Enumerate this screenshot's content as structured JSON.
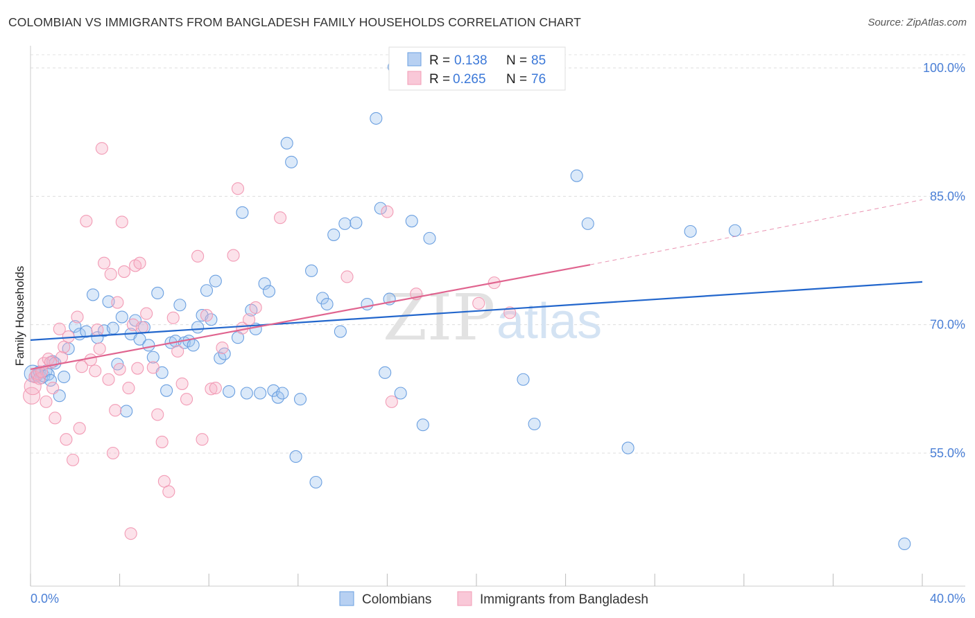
{
  "title": "COLOMBIAN VS IMMIGRANTS FROM BANGLADESH FAMILY HOUSEHOLDS CORRELATION CHART",
  "source": "Source: ZipAtlas.com",
  "watermark": {
    "part1": "ZIP",
    "part2": "atlas"
  },
  "chart_data": {
    "type": "scatter",
    "title": "COLOMBIAN VS IMMIGRANTS FROM BANGLADESH FAMILY HOUSEHOLDS CORRELATION CHART",
    "xlabel": "",
    "ylabel": "Family Households",
    "xlim": [
      0,
      40
    ],
    "ylim": [
      40,
      102
    ],
    "x_tick_labels": [
      "0.0%",
      "40.0%"
    ],
    "y_ticks": [
      55,
      70,
      85,
      100
    ],
    "y_tick_labels": [
      "55.0%",
      "70.0%",
      "85.0%",
      "100.0%"
    ],
    "grid": true,
    "legend_position": "top-center",
    "series": [
      {
        "name": "Colombians",
        "color": "#6a9fe0",
        "line_color": "#2266cc",
        "R": "0.138",
        "N": "85",
        "trend": {
          "x": [
            0,
            40
          ],
          "y": [
            68.2,
            75.0
          ]
        },
        "points": [
          [
            0.1,
            64.3
          ],
          [
            0.2,
            63.9
          ],
          [
            0.3,
            64.1
          ],
          [
            0.4,
            64.5
          ],
          [
            0.5,
            63.8
          ],
          [
            0.6,
            64.0
          ],
          [
            0.7,
            64.6
          ],
          [
            0.8,
            64.2
          ],
          [
            0.9,
            63.5
          ],
          [
            1.0,
            65.7
          ],
          [
            1.1,
            65.5
          ],
          [
            1.3,
            61.7
          ],
          [
            1.5,
            63.9
          ],
          [
            1.7,
            67.2
          ],
          [
            2.0,
            69.8
          ],
          [
            2.2,
            68.9
          ],
          [
            2.5,
            69.2
          ],
          [
            2.8,
            73.5
          ],
          [
            3.0,
            68.5
          ],
          [
            3.3,
            69.3
          ],
          [
            3.5,
            72.7
          ],
          [
            3.7,
            69.6
          ],
          [
            3.9,
            65.4
          ],
          [
            4.1,
            70.9
          ],
          [
            4.3,
            59.9
          ],
          [
            4.5,
            68.9
          ],
          [
            4.7,
            70.5
          ],
          [
            4.9,
            68.3
          ],
          [
            5.1,
            69.7
          ],
          [
            5.3,
            67.6
          ],
          [
            5.5,
            66.2
          ],
          [
            5.7,
            73.7
          ],
          [
            5.9,
            64.4
          ],
          [
            6.1,
            62.3
          ],
          [
            6.3,
            67.9
          ],
          [
            6.5,
            68.1
          ],
          [
            6.7,
            72.3
          ],
          [
            6.9,
            67.9
          ],
          [
            7.1,
            68.1
          ],
          [
            7.3,
            67.6
          ],
          [
            7.5,
            69.7
          ],
          [
            7.7,
            71.1
          ],
          [
            7.9,
            74.0
          ],
          [
            8.1,
            70.6
          ],
          [
            8.3,
            75.1
          ],
          [
            8.5,
            66.1
          ],
          [
            8.7,
            66.6
          ],
          [
            8.9,
            62.2
          ],
          [
            9.3,
            68.5
          ],
          [
            9.5,
            83.1
          ],
          [
            9.7,
            62.0
          ],
          [
            9.9,
            71.7
          ],
          [
            10.1,
            69.5
          ],
          [
            10.3,
            62.0
          ],
          [
            10.5,
            74.8
          ],
          [
            10.7,
            73.9
          ],
          [
            10.9,
            62.3
          ],
          [
            11.1,
            61.5
          ],
          [
            11.3,
            62.0
          ],
          [
            11.5,
            91.2
          ],
          [
            11.7,
            89.0
          ],
          [
            11.9,
            54.6
          ],
          [
            12.1,
            61.3
          ],
          [
            12.6,
            76.3
          ],
          [
            12.8,
            51.6
          ],
          [
            13.1,
            73.1
          ],
          [
            13.3,
            72.4
          ],
          [
            13.6,
            80.5
          ],
          [
            13.9,
            69.2
          ],
          [
            14.1,
            81.8
          ],
          [
            14.6,
            81.9
          ],
          [
            15.1,
            72.4
          ],
          [
            15.5,
            94.1
          ],
          [
            15.7,
            83.6
          ],
          [
            15.9,
            64.4
          ],
          [
            16.1,
            73.0
          ],
          [
            16.3,
            100.1
          ],
          [
            16.6,
            62.0
          ],
          [
            17.1,
            82.1
          ],
          [
            17.6,
            58.3
          ],
          [
            17.9,
            80.1
          ],
          [
            22.1,
            63.6
          ],
          [
            22.6,
            58.4
          ],
          [
            24.5,
            87.4
          ],
          [
            25.0,
            81.8
          ],
          [
            26.8,
            55.6
          ],
          [
            29.6,
            80.9
          ],
          [
            31.6,
            81.0
          ],
          [
            39.2,
            44.4
          ]
        ]
      },
      {
        "name": "Immigrants from Bangladesh",
        "color": "#f29bb5",
        "line_color": "#e0648f",
        "R": "0.265",
        "N": "76",
        "trend": {
          "x": [
            0,
            25.1
          ],
          "y": [
            64.8,
            77.0
          ]
        },
        "trend_dashed": {
          "x": [
            25.1,
            40
          ],
          "y": [
            77.0,
            84.6
          ]
        },
        "points": [
          [
            0.05,
            61.7
          ],
          [
            0.1,
            62.8
          ],
          [
            0.2,
            63.9
          ],
          [
            0.3,
            64.3
          ],
          [
            0.4,
            63.7
          ],
          [
            0.5,
            64.5
          ],
          [
            0.6,
            65.5
          ],
          [
            0.7,
            61.0
          ],
          [
            0.8,
            66.0
          ],
          [
            0.9,
            65.6
          ],
          [
            1.0,
            62.6
          ],
          [
            1.1,
            59.1
          ],
          [
            1.3,
            69.5
          ],
          [
            1.4,
            66.2
          ],
          [
            1.5,
            67.4
          ],
          [
            1.6,
            56.6
          ],
          [
            1.7,
            68.6
          ],
          [
            1.9,
            54.2
          ],
          [
            2.1,
            70.9
          ],
          [
            2.2,
            57.9
          ],
          [
            2.3,
            65.1
          ],
          [
            2.5,
            82.1
          ],
          [
            2.7,
            65.9
          ],
          [
            2.9,
            64.6
          ],
          [
            3.0,
            69.4
          ],
          [
            3.1,
            67.2
          ],
          [
            3.2,
            90.6
          ],
          [
            3.3,
            77.2
          ],
          [
            3.5,
            63.6
          ],
          [
            3.6,
            75.9
          ],
          [
            3.7,
            55.0
          ],
          [
            3.8,
            60.0
          ],
          [
            3.9,
            72.6
          ],
          [
            4.0,
            64.8
          ],
          [
            4.1,
            82.0
          ],
          [
            4.2,
            76.2
          ],
          [
            4.4,
            62.6
          ],
          [
            4.5,
            45.6
          ],
          [
            4.6,
            70.0
          ],
          [
            4.7,
            76.9
          ],
          [
            4.8,
            64.9
          ],
          [
            4.9,
            77.2
          ],
          [
            5.0,
            69.7
          ],
          [
            5.2,
            71.3
          ],
          [
            5.5,
            65.0
          ],
          [
            5.7,
            59.5
          ],
          [
            5.9,
            56.3
          ],
          [
            6.0,
            51.7
          ],
          [
            6.2,
            50.5
          ],
          [
            6.4,
            70.8
          ],
          [
            6.6,
            66.9
          ],
          [
            6.8,
            63.1
          ],
          [
            7.0,
            61.3
          ],
          [
            7.5,
            78.0
          ],
          [
            7.7,
            56.6
          ],
          [
            7.9,
            71.1
          ],
          [
            8.1,
            62.5
          ],
          [
            8.3,
            62.6
          ],
          [
            8.6,
            67.3
          ],
          [
            9.1,
            78.1
          ],
          [
            9.3,
            85.9
          ],
          [
            9.5,
            69.6
          ],
          [
            9.8,
            70.6
          ],
          [
            10.1,
            72.0
          ],
          [
            11.2,
            82.5
          ],
          [
            14.2,
            75.6
          ],
          [
            16.0,
            83.2
          ],
          [
            16.2,
            61.0
          ],
          [
            17.3,
            73.6
          ],
          [
            20.1,
            72.5
          ],
          [
            20.8,
            74.9
          ],
          [
            21.5,
            71.4
          ]
        ]
      }
    ]
  },
  "legend": {
    "r_label": "R =",
    "n_label": "N ="
  }
}
